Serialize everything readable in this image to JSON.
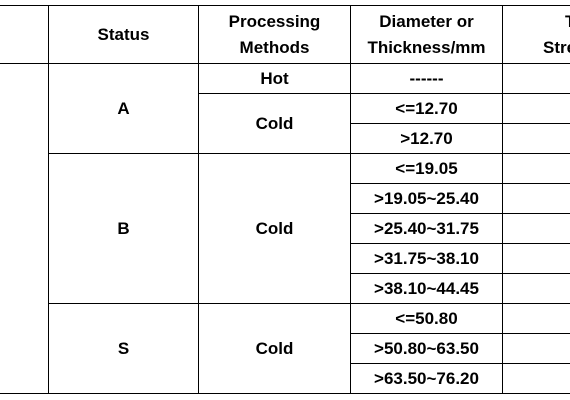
{
  "table": {
    "headers": {
      "status": "Status",
      "methods_line1": "Processing",
      "methods_line2": "Methods",
      "diameter_line1": "Diameter or",
      "diameter_line2": "Thickness/mm",
      "strength_line1": "T",
      "strength_line2": "Stre"
    },
    "rows": [
      {
        "status": "A",
        "method": "Hot",
        "diameter": "------"
      },
      {
        "status": "A",
        "method": "Cold",
        "diameter": "<=12.70"
      },
      {
        "status": "A",
        "method": "Cold",
        "diameter": ">12.70"
      },
      {
        "status": "B",
        "method": "Cold",
        "diameter": "<=19.05"
      },
      {
        "status": "B",
        "method": "Cold",
        "diameter": ">19.05~25.40"
      },
      {
        "status": "B",
        "method": "Cold",
        "diameter": ">25.40~31.75"
      },
      {
        "status": "B",
        "method": "Cold",
        "diameter": ">31.75~38.10"
      },
      {
        "status": "B",
        "method": "Cold",
        "diameter": ">38.10~44.45"
      },
      {
        "status": "S",
        "method": "Cold",
        "diameter": "<=50.80"
      },
      {
        "status": "S",
        "method": "Cold",
        "diameter": ">50.80~63.50"
      },
      {
        "status": "S",
        "method": "Cold",
        "diameter": ">63.50~76.20"
      }
    ]
  }
}
